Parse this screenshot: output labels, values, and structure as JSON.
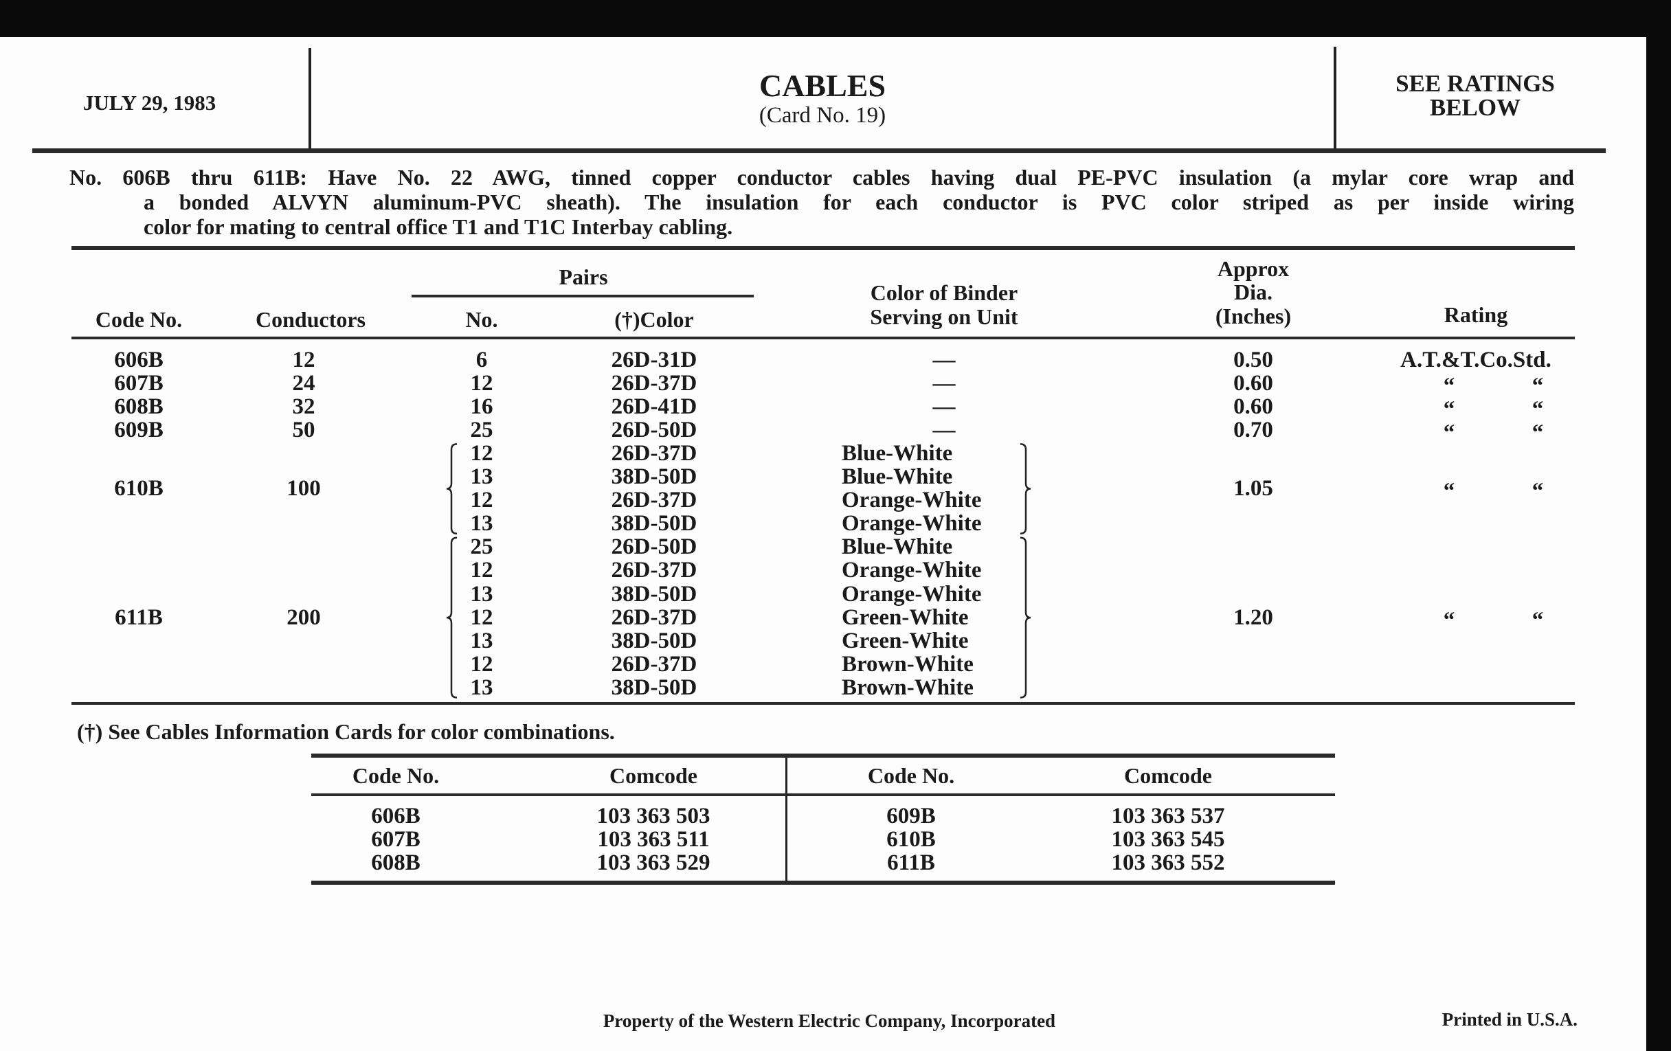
{
  "header": {
    "date": "JULY 29, 1983",
    "title": "CABLES",
    "subtitle": "(Card No. 19)",
    "rating_note_line1": "SEE RATINGS",
    "rating_note_line2": "BELOW"
  },
  "description": {
    "lines": [
      "No. 606B thru 611B: Have No. 22 AWG, tinned copper conductor cables having dual PE-PVC insulation (a mylar core wrap and",
      "a bonded ALVYN aluminum-PVC sheath). The insulation for each conductor is PVC color striped as per inside wiring",
      "color for mating to central office T1 and T1C Interbay cabling."
    ]
  },
  "main_table": {
    "headers": {
      "code": "Code No.",
      "conductors": "Conductors",
      "pairs": "Pairs",
      "pairs_no": "No.",
      "pairs_color": "(†)Color",
      "binder_1": "Color of Binder",
      "binder_2": "Serving on Unit",
      "dia_1": "Approx",
      "dia_2": "Dia.",
      "dia_3": "(Inches)",
      "rating": "Rating"
    },
    "rows": [
      {
        "code": "606B",
        "conductors": "12",
        "pairs": [
          {
            "no": "6",
            "color": "26D-31D",
            "binder": "—"
          }
        ],
        "dia": "0.50",
        "rating": [
          "A.T.&T.Co.Std."
        ]
      },
      {
        "code": "607B",
        "conductors": "24",
        "pairs": [
          {
            "no": "12",
            "color": "26D-37D",
            "binder": "—"
          }
        ],
        "dia": "0.60",
        "rating": [
          "“",
          "“"
        ]
      },
      {
        "code": "608B",
        "conductors": "32",
        "pairs": [
          {
            "no": "16",
            "color": "26D-41D",
            "binder": "—"
          }
        ],
        "dia": "0.60",
        "rating": [
          "“",
          "“"
        ]
      },
      {
        "code": "609B",
        "conductors": "50",
        "pairs": [
          {
            "no": "25",
            "color": "26D-50D",
            "binder": "—"
          }
        ],
        "dia": "0.70",
        "rating": [
          "“",
          "“"
        ]
      },
      {
        "code": "610B",
        "conductors": "100",
        "pairs": [
          {
            "no": "12",
            "color": "26D-37D",
            "binder": "Blue-White"
          },
          {
            "no": "13",
            "color": "38D-50D",
            "binder": "Blue-White"
          },
          {
            "no": "12",
            "color": "26D-37D",
            "binder": "Orange-White"
          },
          {
            "no": "13",
            "color": "38D-50D",
            "binder": "Orange-White"
          }
        ],
        "dia": "1.05",
        "rating": [
          "“",
          "“"
        ]
      },
      {
        "code": "611B",
        "conductors": "200",
        "pairs": [
          {
            "no": "25",
            "color": "26D-50D",
            "binder": "Blue-White"
          },
          {
            "no": "12",
            "color": "26D-37D",
            "binder": "Orange-White"
          },
          {
            "no": "13",
            "color": "38D-50D",
            "binder": "Orange-White"
          },
          {
            "no": "12",
            "color": "26D-37D",
            "binder": "Green-White"
          },
          {
            "no": "13",
            "color": "38D-50D",
            "binder": "Green-White"
          },
          {
            "no": "12",
            "color": "26D-37D",
            "binder": "Brown-White"
          },
          {
            "no": "13",
            "color": "38D-50D",
            "binder": "Brown-White"
          }
        ],
        "dia": "1.20",
        "rating": [
          "“",
          "“"
        ]
      }
    ]
  },
  "footnote": "(†) See Cables Information Cards for color combinations.",
  "comcode_table": {
    "headers": [
      "Code No.",
      "Comcode",
      "Code No.",
      "Comcode"
    ],
    "left": [
      [
        "606B",
        "103 363 503"
      ],
      [
        "607B",
        "103 363 511"
      ],
      [
        "608B",
        "103 363 529"
      ]
    ],
    "right": [
      [
        "609B",
        "103 363 537"
      ],
      [
        "610B",
        "103 363 545"
      ],
      [
        "611B",
        "103 363 552"
      ]
    ]
  },
  "footer": {
    "property": "Property of the Western Electric Company, Incorporated",
    "printed": "Printed in U.S.A."
  }
}
